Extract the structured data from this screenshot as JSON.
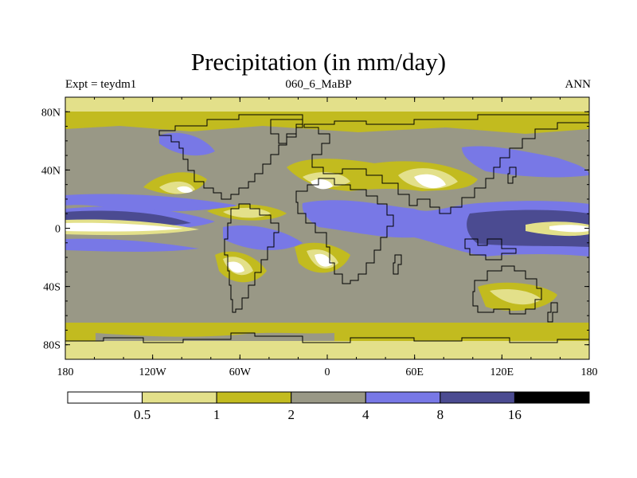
{
  "title": "Precipitation (in mm/day)",
  "subtitle_left": "Expt = teydm1",
  "subtitle_center": "060_6_MaBP",
  "subtitle_right": "ANN",
  "map": {
    "lon_range": [
      -180,
      180
    ],
    "lat_range": [
      -90,
      90
    ],
    "lat_ticks": [
      {
        "value": 80,
        "label": "80N"
      },
      {
        "value": 40,
        "label": "40N"
      },
      {
        "value": 0,
        "label": "0"
      },
      {
        "value": -40,
        "label": "40S"
      },
      {
        "value": -80,
        "label": "80S"
      }
    ],
    "lon_ticks": [
      {
        "value": -180,
        "label": "180"
      },
      {
        "value": -120,
        "label": "120W"
      },
      {
        "value": -60,
        "label": "60W"
      },
      {
        "value": 0,
        "label": "0"
      },
      {
        "value": 60,
        "label": "60E"
      },
      {
        "value": 120,
        "label": "120E"
      },
      {
        "value": 180,
        "label": "180"
      }
    ]
  },
  "colorbar": {
    "colors": [
      "#ffffff",
      "#e3e08a",
      "#c2bb1f",
      "#999886",
      "#7878e6",
      "#4b4b91",
      "#000000"
    ],
    "labels": [
      "0.5",
      "1",
      "2",
      "4",
      "8",
      "16"
    ]
  }
}
